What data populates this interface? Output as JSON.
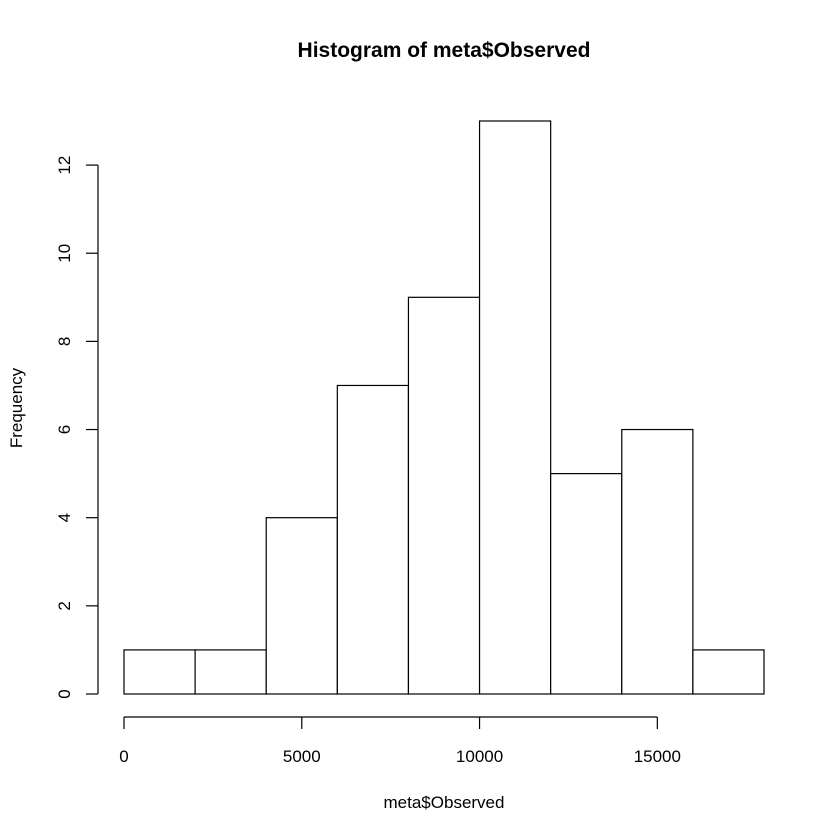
{
  "chart_data": {
    "type": "bar",
    "title": "Histogram of meta$Observed",
    "xlabel": "meta$Observed",
    "ylabel": "Frequency",
    "bins": [
      {
        "start": 0,
        "end": 2000,
        "count": 1
      },
      {
        "start": 2000,
        "end": 4000,
        "count": 1
      },
      {
        "start": 4000,
        "end": 6000,
        "count": 4
      },
      {
        "start": 6000,
        "end": 8000,
        "count": 7
      },
      {
        "start": 8000,
        "end": 10000,
        "count": 9
      },
      {
        "start": 10000,
        "end": 12000,
        "count": 13
      },
      {
        "start": 12000,
        "end": 14000,
        "count": 5
      },
      {
        "start": 14000,
        "end": 16000,
        "count": 6
      },
      {
        "start": 16000,
        "end": 18000,
        "count": 1
      }
    ],
    "xlim": [
      0,
      18000
    ],
    "ylim": [
      0,
      13
    ],
    "x_ticks": [
      0,
      5000,
      10000,
      15000
    ],
    "x_tick_labels": [
      "0",
      "5000",
      "10000",
      "15000"
    ],
    "y_ticks": [
      0,
      2,
      4,
      6,
      8,
      10,
      12
    ],
    "y_tick_labels": [
      "0",
      "2",
      "4",
      "6",
      "8",
      "10",
      "12"
    ],
    "grid": false,
    "legend": "none"
  }
}
